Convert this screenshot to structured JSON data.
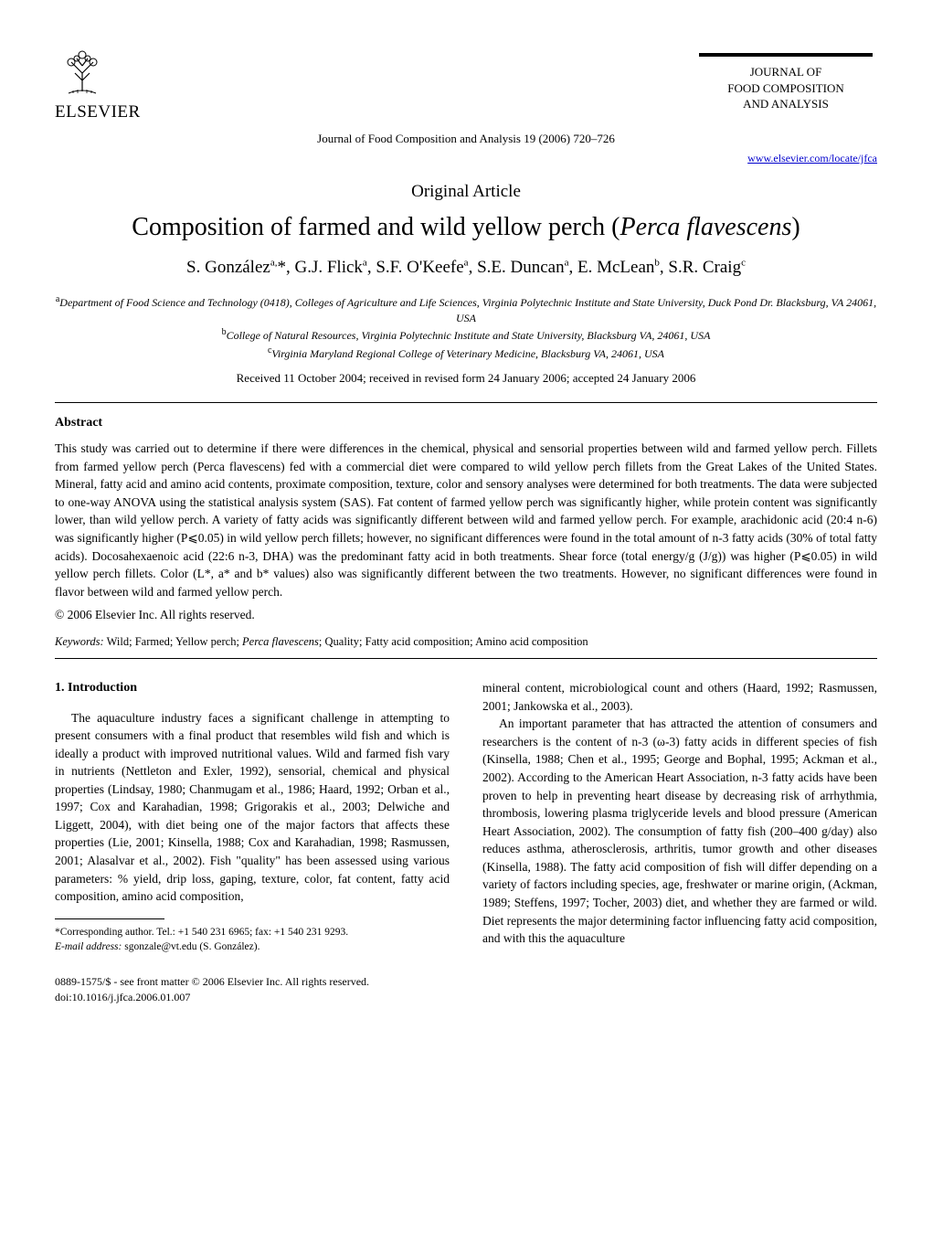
{
  "publisher": {
    "name": "ELSEVIER"
  },
  "journal": {
    "name_line1": "JOURNAL OF",
    "name_line2": "FOOD COMPOSITION",
    "name_line3": "AND ANALYSIS",
    "citation": "Journal of Food Composition and Analysis 19 (2006) 720–726",
    "url": "www.elsevier.com/locate/jfca"
  },
  "article": {
    "type": "Original Article",
    "title_prefix": "Composition of farmed and wild yellow perch (",
    "title_species": "Perca flavescens",
    "title_suffix": ")",
    "authors_html": "S. González<sup>a,</sup>*, G.J. Flick<sup>a</sup>, S.F. O'Keefe<sup>a</sup>, S.E. Duncan<sup>a</sup>, E. McLean<sup>b</sup>, S.R. Craig<sup>c</sup>",
    "affiliations": {
      "a": "Department of Food Science and Technology (0418), Colleges of Agriculture and Life Sciences, Virginia Polytechnic Institute and State University, Duck Pond Dr. Blacksburg, VA 24061, USA",
      "b": "College of Natural Resources, Virginia Polytechnic Institute and State University, Blacksburg VA, 24061, USA",
      "c": "Virginia Maryland Regional College of Veterinary Medicine, Blacksburg VA, 24061, USA"
    },
    "received": "Received 11 October 2004; received in revised form 24 January 2006; accepted 24 January 2006"
  },
  "abstract": {
    "heading": "Abstract",
    "body": "This study was carried out to determine if there were differences in the chemical, physical and sensorial properties between wild and farmed yellow perch. Fillets from farmed yellow perch (Perca flavescens) fed with a commercial diet were compared to wild yellow perch fillets from the Great Lakes of the United States. Mineral, fatty acid and amino acid contents, proximate composition, texture, color and sensory analyses were determined for both treatments. The data were subjected to one-way ANOVA using the statistical analysis system (SAS). Fat content of farmed yellow perch was significantly higher, while protein content was significantly lower, than wild yellow perch. A variety of fatty acids was significantly different between wild and farmed yellow perch. For example, arachidonic acid (20:4 n-6) was significantly higher (P⩽0.05) in wild yellow perch fillets; however, no significant differences were found in the total amount of n-3 fatty acids (30% of total fatty acids). Docosahexaenoic acid (22:6 n-3, DHA) was the predominant fatty acid in both treatments. Shear force (total energy/g (J/g)) was higher (P⩽0.05) in wild yellow perch fillets. Color (L*, a* and b* values) also was significantly different between the two treatments. However, no significant differences were found in flavor between wild and farmed yellow perch.",
    "copyright": "© 2006 Elsevier Inc. All rights reserved."
  },
  "keywords": {
    "label": "Keywords:",
    "text_before_species": " Wild; Farmed; Yellow perch; ",
    "species": "Perca flavescens",
    "text_after_species": "; Quality; Fatty acid composition; Amino acid composition"
  },
  "introduction": {
    "heading": "1. Introduction",
    "left_col": "The aquaculture industry faces a significant challenge in attempting to present consumers with a final product that resembles wild fish and which is ideally a product with improved nutritional values. Wild and farmed fish vary in nutrients (Nettleton and Exler, 1992), sensorial, chemical and physical properties (Lindsay, 1980; Chanmugam et al., 1986; Haard, 1992; Orban et al., 1997; Cox and Karahadian, 1998; Grigorakis et al., 2003; Delwiche and Liggett, 2004), with diet being one of the major factors that affects these properties (Lie, 2001; Kinsella, 1988; Cox and Karahadian, 1998; Rasmussen, 2001; Alasalvar et al., 2002). Fish \"quality\" has been assessed using various parameters: % yield, drip loss, gaping, texture, color, fat content, fatty acid composition, amino acid composition,",
    "right_col_p1": "mineral content, microbiological count and others (Haard, 1992; Rasmussen, 2001; Jankowska et al., 2003).",
    "right_col_p2": "An important parameter that has attracted the attention of consumers and researchers is the content of n-3 (ω-3) fatty acids in different species of fish (Kinsella, 1988; Chen et al., 1995; George and Bophal, 1995; Ackman et al., 2002). According to the American Heart Association, n-3 fatty acids have been proven to help in preventing heart disease by decreasing risk of arrhythmia, thrombosis, lowering plasma triglyceride levels and blood pressure (American Heart Association, 2002). The consumption of fatty fish (200–400 g/day) also reduces asthma, atherosclerosis, arthritis, tumor growth and other diseases (Kinsella, 1988). The fatty acid composition of fish will differ depending on a variety of factors including species, age, freshwater or marine origin, (Ackman, 1989; Steffens, 1997; Tocher, 2003) diet, and whether they are farmed or wild. Diet represents the major determining factor influencing fatty acid composition, and with this the aquaculture"
  },
  "footnotes": {
    "corresponding": "*Corresponding author. Tel.: +1 540 231 6965; fax: +1 540 231 9293.",
    "email_label": "E-mail address:",
    "email": " sgonzale@vt.edu (S. González)."
  },
  "footer": {
    "issn_line": "0889-1575/$ - see front matter © 2006 Elsevier Inc. All rights reserved.",
    "doi_line": "doi:10.1016/j.jfca.2006.01.007"
  },
  "style": {
    "page_bg": "#ffffff",
    "text_color": "#000000",
    "link_color": "#0000cc",
    "font_body": "Times New Roman",
    "title_fontsize_pt": 21,
    "authors_fontsize_pt": 14,
    "body_fontsize_pt": 10,
    "affil_fontsize_pt": 9,
    "footnote_fontsize_pt": 8
  }
}
